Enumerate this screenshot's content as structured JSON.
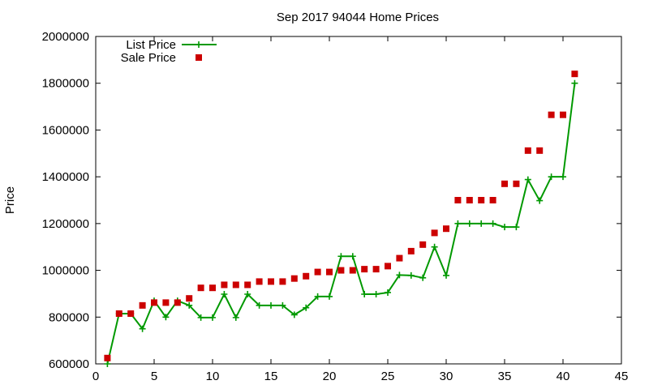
{
  "chart_data": {
    "type": "line",
    "title": "Sep 2017 94044 Home Prices",
    "xlabel": "",
    "ylabel": "Price",
    "xlim": [
      0,
      45
    ],
    "ylim": [
      600000,
      2000000
    ],
    "xticks": [
      0,
      5,
      10,
      15,
      20,
      25,
      30,
      35,
      40,
      45
    ],
    "yticks": [
      600000,
      800000,
      1000000,
      1200000,
      1400000,
      1600000,
      1800000,
      2000000
    ],
    "grid": false,
    "legend_position": "top-left",
    "series": [
      {
        "name": "List Price",
        "style": "line-plus",
        "color": "#009900",
        "x": [
          1,
          2,
          3,
          4,
          5,
          6,
          7,
          8,
          9,
          10,
          11,
          12,
          13,
          14,
          15,
          16,
          17,
          18,
          19,
          20,
          21,
          22,
          23,
          24,
          25,
          26,
          27,
          28,
          29,
          30,
          31,
          32,
          33,
          34,
          35,
          36,
          37,
          38,
          39,
          40,
          41
        ],
        "values": [
          600000,
          815000,
          815000,
          750000,
          870000,
          800000,
          870000,
          850000,
          798000,
          798000,
          898000,
          798000,
          898000,
          850000,
          850000,
          850000,
          810000,
          840000,
          888000,
          888000,
          1060000,
          1060000,
          898000,
          898000,
          905000,
          980000,
          978000,
          968000,
          1100000,
          978000,
          1200000,
          1200000,
          1200000,
          1200000,
          1185000,
          1185000,
          1388000,
          1298000,
          1400000,
          1400000,
          1800000
        ]
      },
      {
        "name": "Sale Price",
        "style": "square-marker",
        "color": "#cc0000",
        "x": [
          1,
          2,
          3,
          4,
          5,
          6,
          7,
          8,
          9,
          10,
          11,
          12,
          13,
          14,
          15,
          16,
          17,
          18,
          19,
          20,
          21,
          22,
          23,
          24,
          25,
          26,
          27,
          28,
          29,
          30,
          31,
          32,
          33,
          34,
          35,
          36,
          37,
          38,
          39,
          40,
          41
        ],
        "values": [
          625000,
          815000,
          815000,
          850000,
          862000,
          862000,
          862000,
          880000,
          925000,
          925000,
          938000,
          938000,
          938000,
          952000,
          952000,
          952000,
          965000,
          975000,
          993000,
          993000,
          1000000,
          1000000,
          1005000,
          1005000,
          1018000,
          1052000,
          1082000,
          1110000,
          1160000,
          1178000,
          1300000,
          1300000,
          1300000,
          1300000,
          1370000,
          1370000,
          1512000,
          1512000,
          1665000,
          1665000,
          1840000
        ]
      }
    ]
  }
}
